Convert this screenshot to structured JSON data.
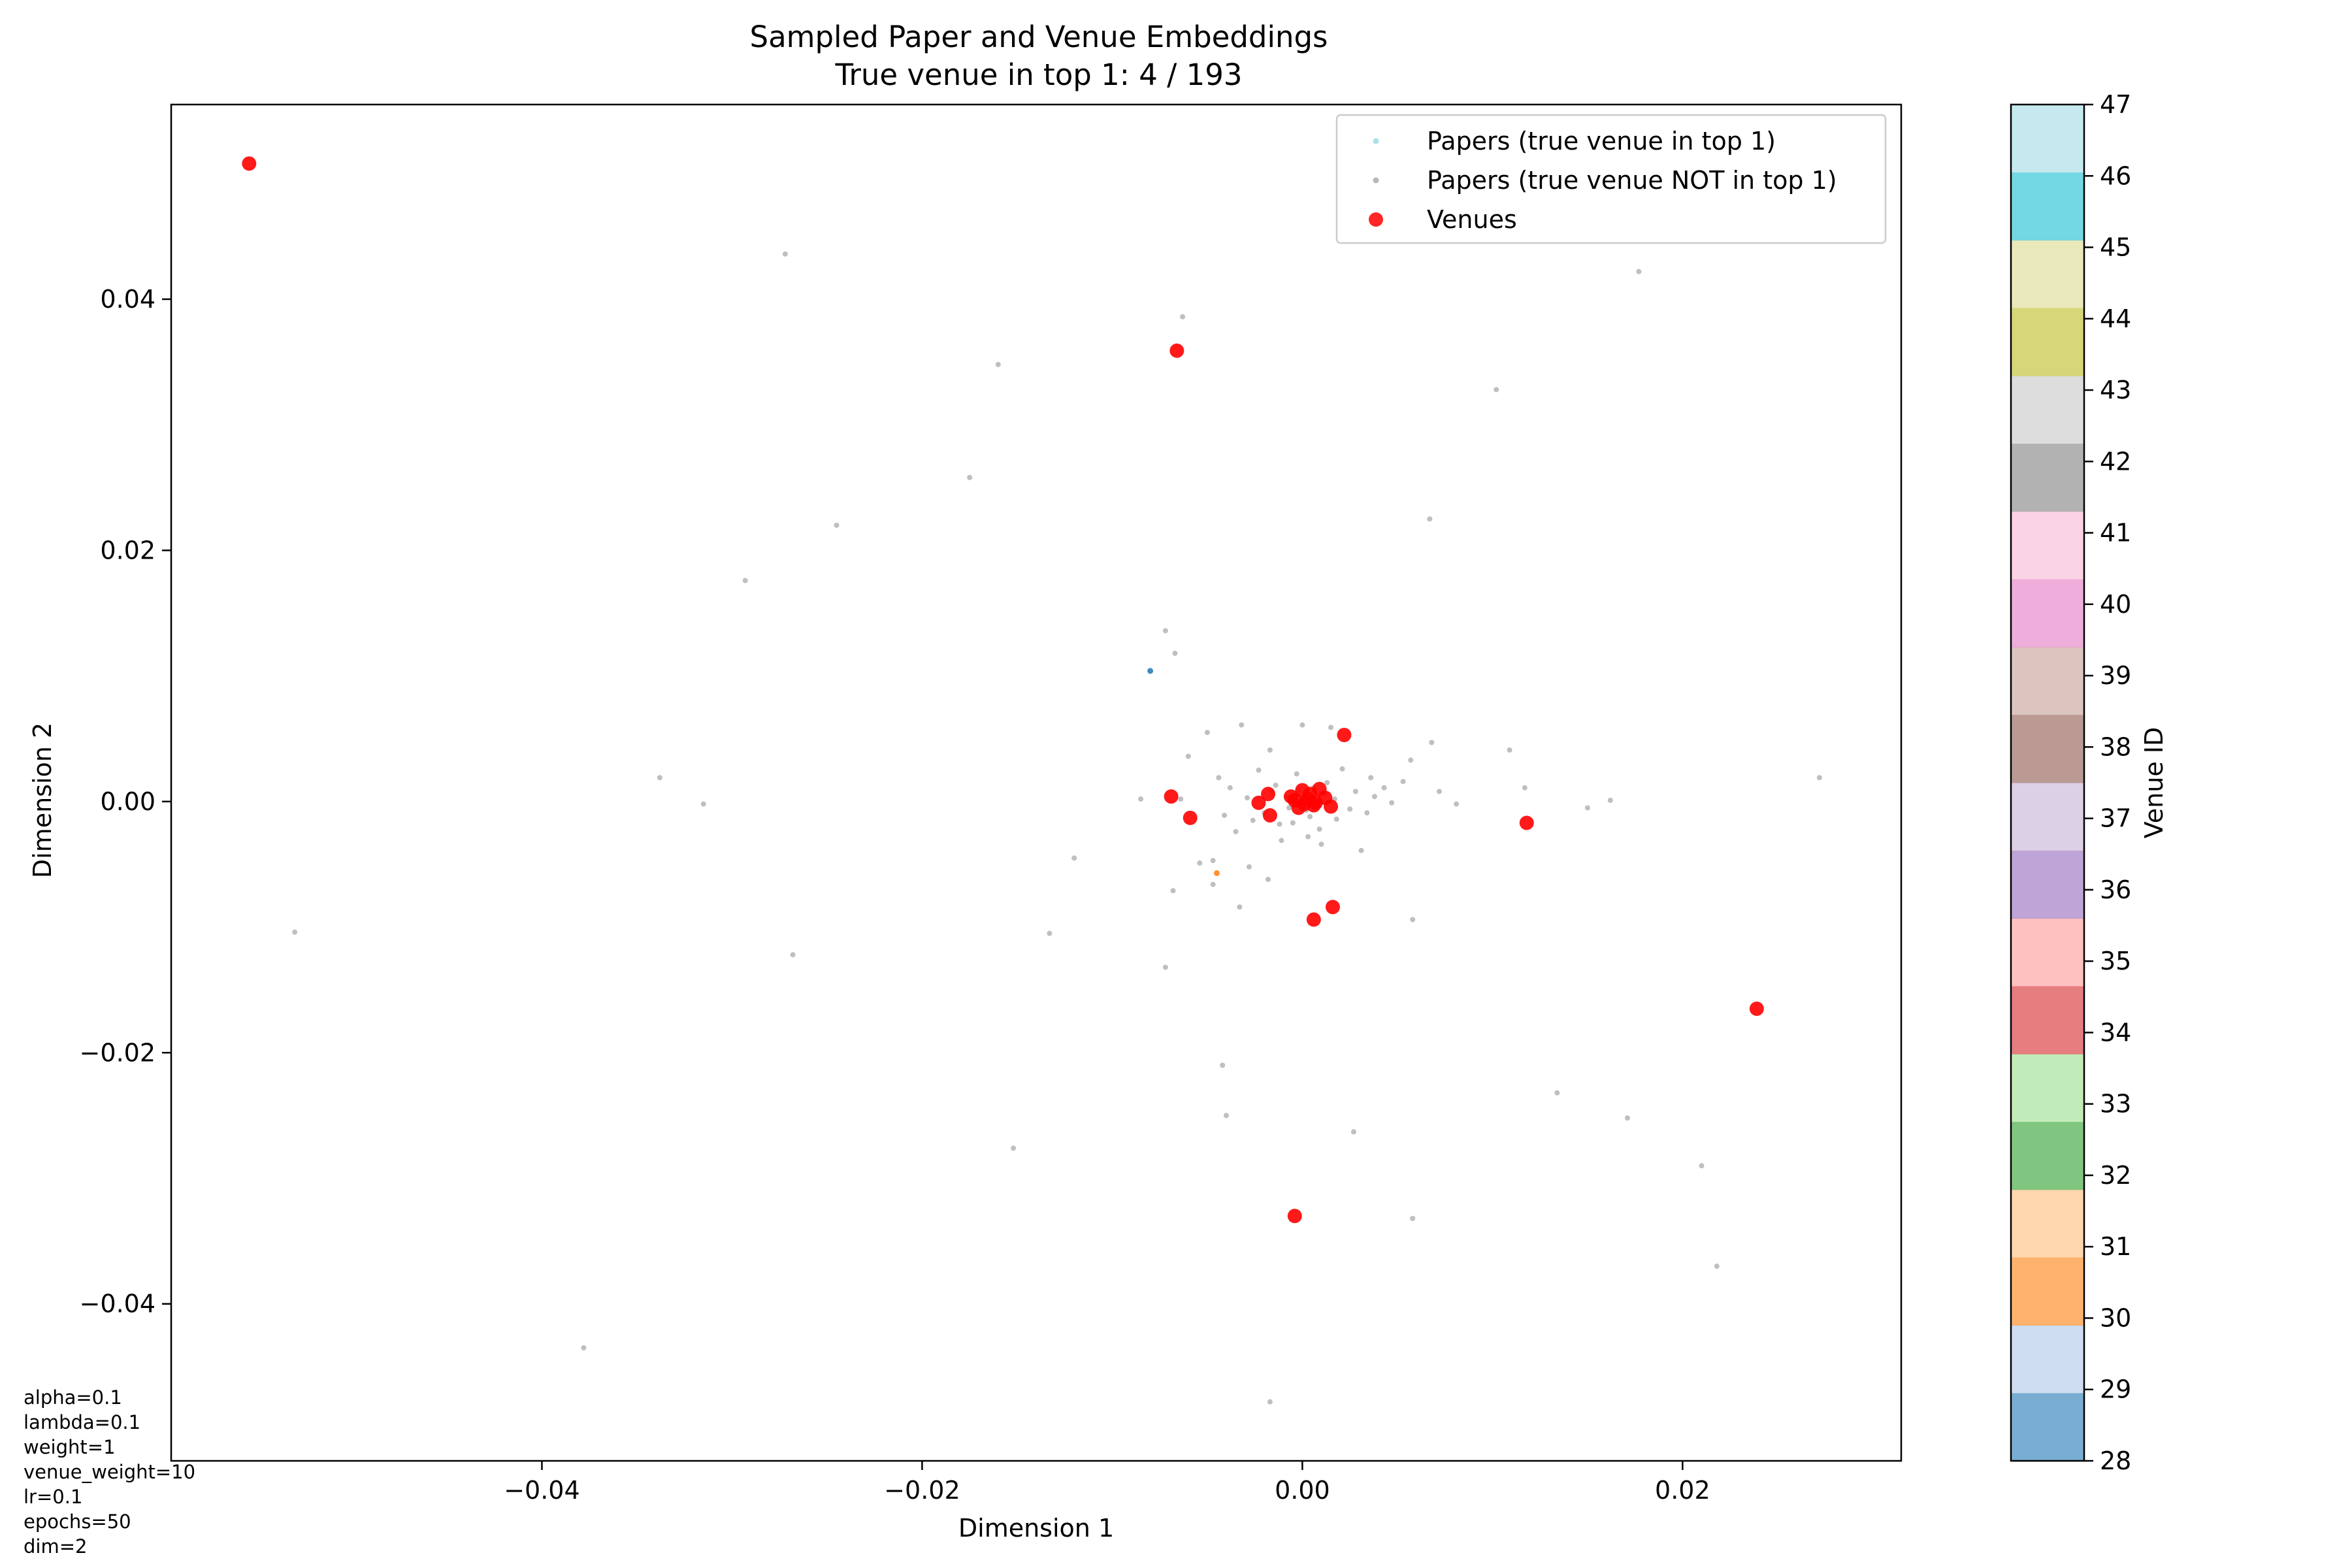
{
  "chart_data": {
    "type": "scatter",
    "title": "Sampled Paper and Venue Embeddings",
    "subtitle": "True venue in top 1: 4 / 193",
    "xlabel": "Dimension 1",
    "ylabel": "Dimension 2",
    "xlim": [
      -0.0595,
      0.0315
    ],
    "ylim": [
      -0.0525,
      0.0555
    ],
    "xticks": [
      -0.04,
      -0.02,
      0.0,
      0.02
    ],
    "xtick_labels": [
      "−0.04",
      "−0.02",
      "0.00",
      "0.02"
    ],
    "yticks": [
      0.04,
      0.02,
      0.0,
      -0.02,
      -0.04
    ],
    "ytick_labels": [
      "0.04",
      "0.02",
      "0.00",
      "−0.02",
      "−0.04"
    ],
    "grid": false,
    "legend_position": "top-right",
    "legend": [
      {
        "label": "Papers (true venue in top 1)",
        "color": "#9edae5"
      },
      {
        "label": "Papers (true venue NOT in top 1)",
        "color": "#aaaaaa"
      },
      {
        "label": "Venues",
        "color": "#ff0000"
      }
    ],
    "colorbar": {
      "label": "Venue ID",
      "min": 28,
      "max": 47,
      "tick_labels": [
        "28",
        "29",
        "30",
        "31",
        "32",
        "33",
        "34",
        "35",
        "36",
        "37",
        "38",
        "39",
        "40",
        "41",
        "42",
        "43",
        "44",
        "45",
        "46",
        "47"
      ],
      "colors": [
        "#1f77b4",
        "#aec7e8",
        "#ff7f0e",
        "#ffbb78",
        "#2ca02c",
        "#98df8a",
        "#d62728",
        "#ff9896",
        "#9467bd",
        "#c5b0d5",
        "#8c564b",
        "#c49c94",
        "#e377c2",
        "#f7b6d2",
        "#7f7f7f",
        "#c7c7c7",
        "#bcbd22",
        "#dbdb8d",
        "#17becf",
        "#9edae5"
      ]
    },
    "series": [
      {
        "name": "Papers (true venue in top 1)",
        "marker": "small-dot",
        "points": [
          {
            "x": -0.008,
            "y": 0.0104,
            "color": "#1f77b4"
          },
          {
            "x": -0.0045,
            "y": -0.0057,
            "color": "#ff7f0e"
          }
        ]
      },
      {
        "name": "Papers (true venue NOT in top 1)",
        "marker": "small-dot",
        "color": "#aaaaaa",
        "points": [
          [
            -0.0272,
            0.0436
          ],
          [
            -0.0063,
            0.0386
          ],
          [
            -0.016,
            0.0348
          ],
          [
            -0.0175,
            0.0258
          ],
          [
            -0.0245,
            0.022
          ],
          [
            -0.0293,
            0.0176
          ],
          [
            0.0177,
            0.0422
          ],
          [
            0.0102,
            0.0328
          ],
          [
            0.0067,
            0.0225
          ],
          [
            -0.0072,
            0.0136
          ],
          [
            -0.0067,
            0.0118
          ],
          [
            -0.0338,
            0.0019
          ],
          [
            -0.0315,
            -0.0002
          ],
          [
            -0.053,
            -0.0104
          ],
          [
            -0.0268,
            -0.0122
          ],
          [
            -0.012,
            -0.0045
          ],
          [
            -0.0133,
            -0.0105
          ],
          [
            -0.0152,
            -0.0276
          ],
          [
            -0.0072,
            -0.0132
          ],
          [
            -0.0068,
            -0.0071
          ],
          [
            -0.0042,
            -0.021
          ],
          [
            -0.004,
            -0.025
          ],
          [
            -0.0378,
            -0.0435
          ],
          [
            -0.0017,
            -0.0478
          ],
          [
            0.0027,
            -0.0263
          ],
          [
            0.0058,
            -0.0332
          ],
          [
            0.0134,
            -0.0232
          ],
          [
            0.0171,
            -0.0252
          ],
          [
            0.021,
            -0.029
          ],
          [
            0.0218,
            -0.037
          ],
          [
            0.0272,
            0.0019
          ],
          [
            0.0162,
            0.0001
          ],
          [
            0.015,
            -0.0005
          ],
          [
            0.0117,
            0.0011
          ],
          [
            0.0109,
            0.0041
          ],
          [
            0.0081,
            -0.0002
          ],
          [
            0.0072,
            0.0008
          ],
          [
            0.0068,
            0.0047
          ],
          [
            0.0057,
            0.0033
          ],
          [
            0.0053,
            0.0016
          ],
          [
            0.0047,
            -0.0001
          ],
          [
            0.0043,
            0.0011
          ],
          [
            0.0038,
            0.0004
          ],
          [
            0.0036,
            0.0019
          ],
          [
            0.0034,
            -0.0009
          ],
          [
            0.0031,
            -0.0039
          ],
          [
            0.0058,
            -0.0094
          ],
          [
            0.0028,
            0.0008
          ],
          [
            0.0025,
            -0.0006
          ],
          [
            0.0021,
            0.0026
          ],
          [
            0.0018,
            -0.0014
          ],
          [
            0.0015,
            0.0059
          ],
          [
            0.0012,
            0.0006
          ],
          [
            0.0009,
            -0.0022
          ],
          [
            0.0006,
            0.0011
          ],
          [
            0.0003,
            -0.0028
          ],
          [
            0.0,
            0.0061
          ],
          [
            -0.0003,
            0.0022
          ],
          [
            -0.0005,
            -0.0017
          ],
          [
            -0.0008,
            0.0004
          ],
          [
            -0.0011,
            -0.0031
          ],
          [
            -0.0014,
            0.0013
          ],
          [
            -0.0017,
            0.0041
          ],
          [
            -0.002,
            -0.0009
          ],
          [
            -0.0023,
            0.0025
          ],
          [
            -0.0026,
            -0.0015
          ],
          [
            -0.0029,
            0.0003
          ],
          [
            -0.0032,
            0.0061
          ],
          [
            -0.0035,
            -0.0024
          ],
          [
            -0.0038,
            0.0011
          ],
          [
            -0.0041,
            -0.0011
          ],
          [
            -0.0044,
            0.0019
          ],
          [
            -0.0047,
            -0.0047
          ],
          [
            -0.005,
            0.0055
          ],
          [
            -0.0054,
            -0.0049
          ],
          [
            -0.006,
            0.0036
          ],
          [
            -0.0064,
            0.0002
          ],
          [
            -0.0085,
            0.0002
          ],
          [
            -0.0033,
            -0.0084
          ],
          [
            -0.0018,
            -0.0062
          ],
          [
            -0.0028,
            -0.0052
          ],
          [
            -0.0047,
            -0.0066
          ],
          [
            0.001,
            -0.0034
          ],
          [
            0.0002,
            -0.0007
          ],
          [
            0.0005,
            0.0001
          ],
          [
            -0.0002,
            0.0009
          ],
          [
            0.0004,
            -0.0012
          ],
          [
            -0.0007,
            -0.0005
          ],
          [
            0.0013,
            0.0015
          ],
          [
            -0.0012,
            -0.0018
          ],
          [
            0.0017,
            0.0002
          ],
          [
            -0.0016,
            0.0008
          ]
        ]
      },
      {
        "name": "Venues",
        "marker": "circle",
        "color": "#ff0000",
        "points": [
          [
            -0.0554,
            0.0508
          ],
          [
            -0.0066,
            0.0359
          ],
          [
            0.0022,
            0.0053
          ],
          [
            -0.0069,
            0.0004
          ],
          [
            -0.0059,
            -0.0013
          ],
          [
            0.0118,
            -0.0017
          ],
          [
            0.0239,
            -0.0165
          ],
          [
            0.0016,
            -0.0084
          ],
          [
            0.0006,
            -0.0094
          ],
          [
            -0.0004,
            -0.033
          ],
          [
            -0.0018,
            0.0006
          ],
          [
            -0.0023,
            -0.0001
          ],
          [
            -0.0017,
            -0.0011
          ],
          [
            -0.0004,
            0.0001
          ],
          [
            0.0,
            0.0009
          ],
          [
            0.0003,
            0.0002
          ],
          [
            0.0006,
            -0.0003
          ],
          [
            0.0009,
            0.001
          ],
          [
            0.0012,
            0.0003
          ],
          [
            0.0015,
            -0.0004
          ],
          [
            -0.0002,
            -0.0005
          ],
          [
            0.0004,
            0.0006
          ],
          [
            -0.0006,
            0.0004
          ],
          [
            0.0001,
            -0.0002
          ],
          [
            0.0007,
            -0.0001
          ]
        ]
      }
    ]
  },
  "params": [
    "alpha=0.1",
    "lambda=0.1",
    "weight=1",
    "venue_weight=10",
    "lr=0.1",
    "epochs=50",
    "dim=2"
  ]
}
